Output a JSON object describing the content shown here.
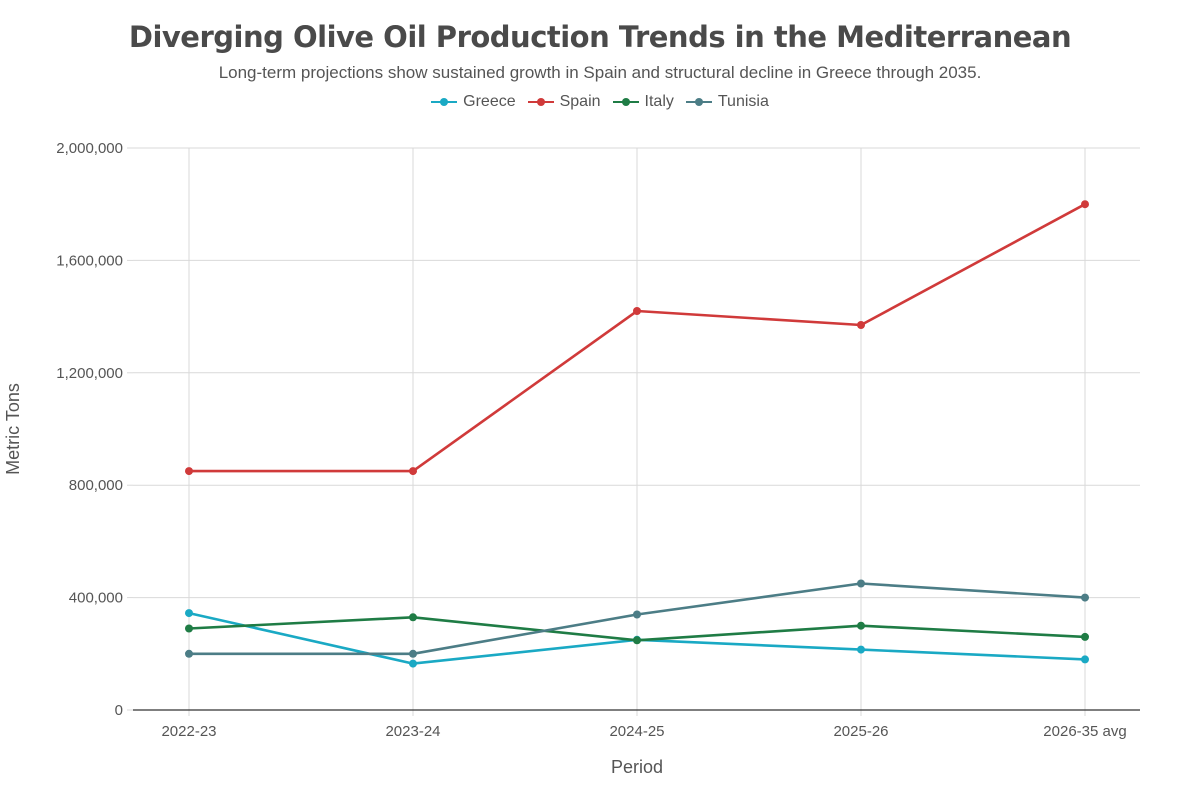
{
  "colors": {
    "greece": "#1aa9c4",
    "spain": "#d03a3a",
    "italy": "#1f7c45",
    "tunisia": "#4c7d86",
    "grid": "#d9d9d9",
    "axis": "#333333",
    "text": "#555555"
  },
  "chart_data": {
    "type": "line",
    "title": "Diverging Olive Oil Production Trends in the Mediterranean",
    "subtitle": "Long-term projections show sustained growth in Spain and structural decline in Greece through 2035.",
    "xlabel": "Period",
    "ylabel": "Metric Tons",
    "categories": [
      "2022-23",
      "2023-24",
      "2024-25",
      "2025-26",
      "2026-35 avg"
    ],
    "ylim": [
      0,
      2000000
    ],
    "yticks": [
      0,
      400000,
      800000,
      1200000,
      1600000,
      2000000
    ],
    "ytick_labels": [
      "0",
      "400,000",
      "800,000",
      "1,200,000",
      "1,600,000",
      "2,000,000"
    ],
    "grid": true,
    "legend_position": "top-center",
    "series": [
      {
        "name": "Greece",
        "color": "#1aa9c4",
        "values": [
          345000,
          165000,
          250000,
          215000,
          180000
        ]
      },
      {
        "name": "Spain",
        "color": "#d03a3a",
        "values": [
          850000,
          850000,
          1420000,
          1370000,
          1800000
        ]
      },
      {
        "name": "Italy",
        "color": "#1f7c45",
        "values": [
          290000,
          330000,
          248000,
          300000,
          260000
        ]
      },
      {
        "name": "Tunisia",
        "color": "#4c7d86",
        "values": [
          200000,
          200000,
          340000,
          450000,
          400000
        ]
      }
    ]
  }
}
